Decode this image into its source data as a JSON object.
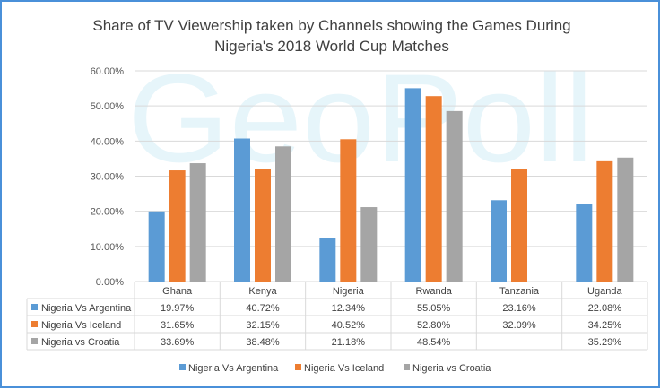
{
  "chart_data": {
    "type": "bar",
    "title_line1": "Share of TV Viewership taken by Channels showing the Games During",
    "title_line2": "Nigeria's 2018 World Cup Matches",
    "watermark": "GeoPoll",
    "categories": [
      "Ghana",
      "Kenya",
      "Nigeria",
      "Rwanda",
      "Tanzania",
      "Uganda"
    ],
    "y_ticks": [
      "0.00%",
      "10.00%",
      "20.00%",
      "30.00%",
      "40.00%",
      "50.00%",
      "60.00%"
    ],
    "ylim": [
      0,
      60
    ],
    "grid": true,
    "legend_position": "bottom",
    "data_table": true,
    "series": [
      {
        "name": "Nigeria Vs Argentina",
        "color": "#5b9bd5",
        "values": [
          19.97,
          40.72,
          12.34,
          55.05,
          23.16,
          22.08
        ],
        "labels": [
          "19.97%",
          "40.72%",
          "12.34%",
          "55.05%",
          "23.16%",
          "22.08%"
        ]
      },
      {
        "name": "Nigeria Vs Iceland",
        "color": "#ed7d31",
        "values": [
          31.65,
          32.15,
          40.52,
          52.8,
          32.09,
          34.25
        ],
        "labels": [
          "31.65%",
          "32.15%",
          "40.52%",
          "52.80%",
          "32.09%",
          "34.25%"
        ]
      },
      {
        "name": "Nigeria vs Croatia",
        "color": "#a5a5a5",
        "values": [
          33.69,
          38.48,
          21.18,
          48.54,
          null,
          35.29
        ],
        "labels": [
          "33.69%",
          "38.48%",
          "21.18%",
          "48.54%",
          "",
          "35.29%"
        ]
      }
    ]
  }
}
